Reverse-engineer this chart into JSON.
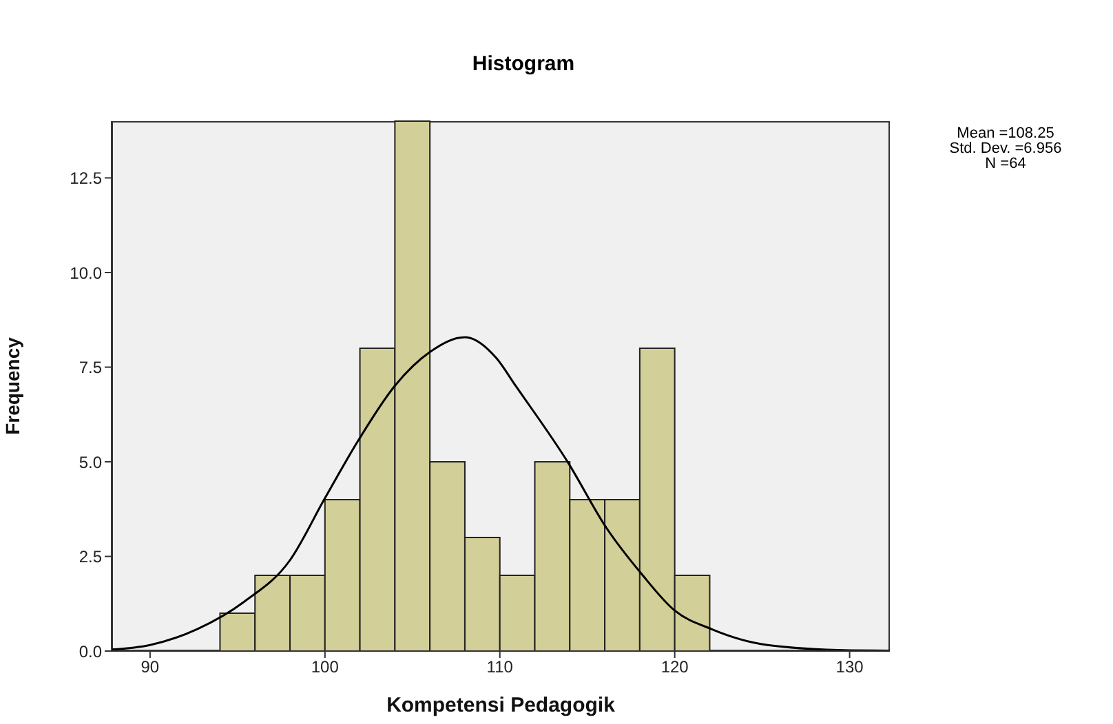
{
  "chart_data": {
    "type": "histogram",
    "title": "Histogram",
    "xlabel": "Kompetensi Pedagogik",
    "ylabel": "Frequency",
    "annotations": [
      "Mean =108.25",
      "Std. Dev. =6.956",
      "N =64"
    ],
    "bins": [
      94,
      96,
      98,
      100,
      102,
      104,
      106,
      108,
      110,
      112,
      114,
      116,
      118,
      120,
      122
    ],
    "values": [
      1,
      2,
      2,
      4,
      8,
      14,
      5,
      3,
      2,
      5,
      4,
      4,
      8,
      2
    ],
    "color": "#d3cf98",
    "series": [
      {
        "type": "line",
        "color": "#000000",
        "x": [
          87.8,
          90,
          92.7,
          95.4,
          98,
          100,
          101.9,
          104,
          106,
          108,
          109.8,
          110.9,
          113.9,
          116.1,
          118.1,
          120,
          122.1,
          125.3,
          130,
          132.3
        ],
        "values": [
          0.04,
          0.16,
          0.58,
          1.31,
          2.4,
          4.04,
          5.56,
          7.01,
          7.9,
          8.29,
          7.74,
          7.01,
          4.98,
          3.25,
          2.04,
          1.07,
          0.58,
          0.16,
          0.02,
          0.01
        ]
      }
    ],
    "marker": "none",
    "line_style": "solid",
    "grid": false,
    "xlim": [
      87.8,
      132.3
    ],
    "xticks": [
      90,
      100,
      110,
      120,
      130
    ],
    "ylim": [
      0,
      14
    ],
    "yticks": [
      {
        "value": 0,
        "label": "0.0"
      },
      {
        "value": 2.5,
        "label": "2.5"
      },
      {
        "value": 5,
        "label": "5.0"
      },
      {
        "value": 7.5,
        "label": "7.5"
      },
      {
        "value": 10,
        "label": "10.0"
      },
      {
        "value": 12.5,
        "label": "12.5"
      }
    ]
  }
}
